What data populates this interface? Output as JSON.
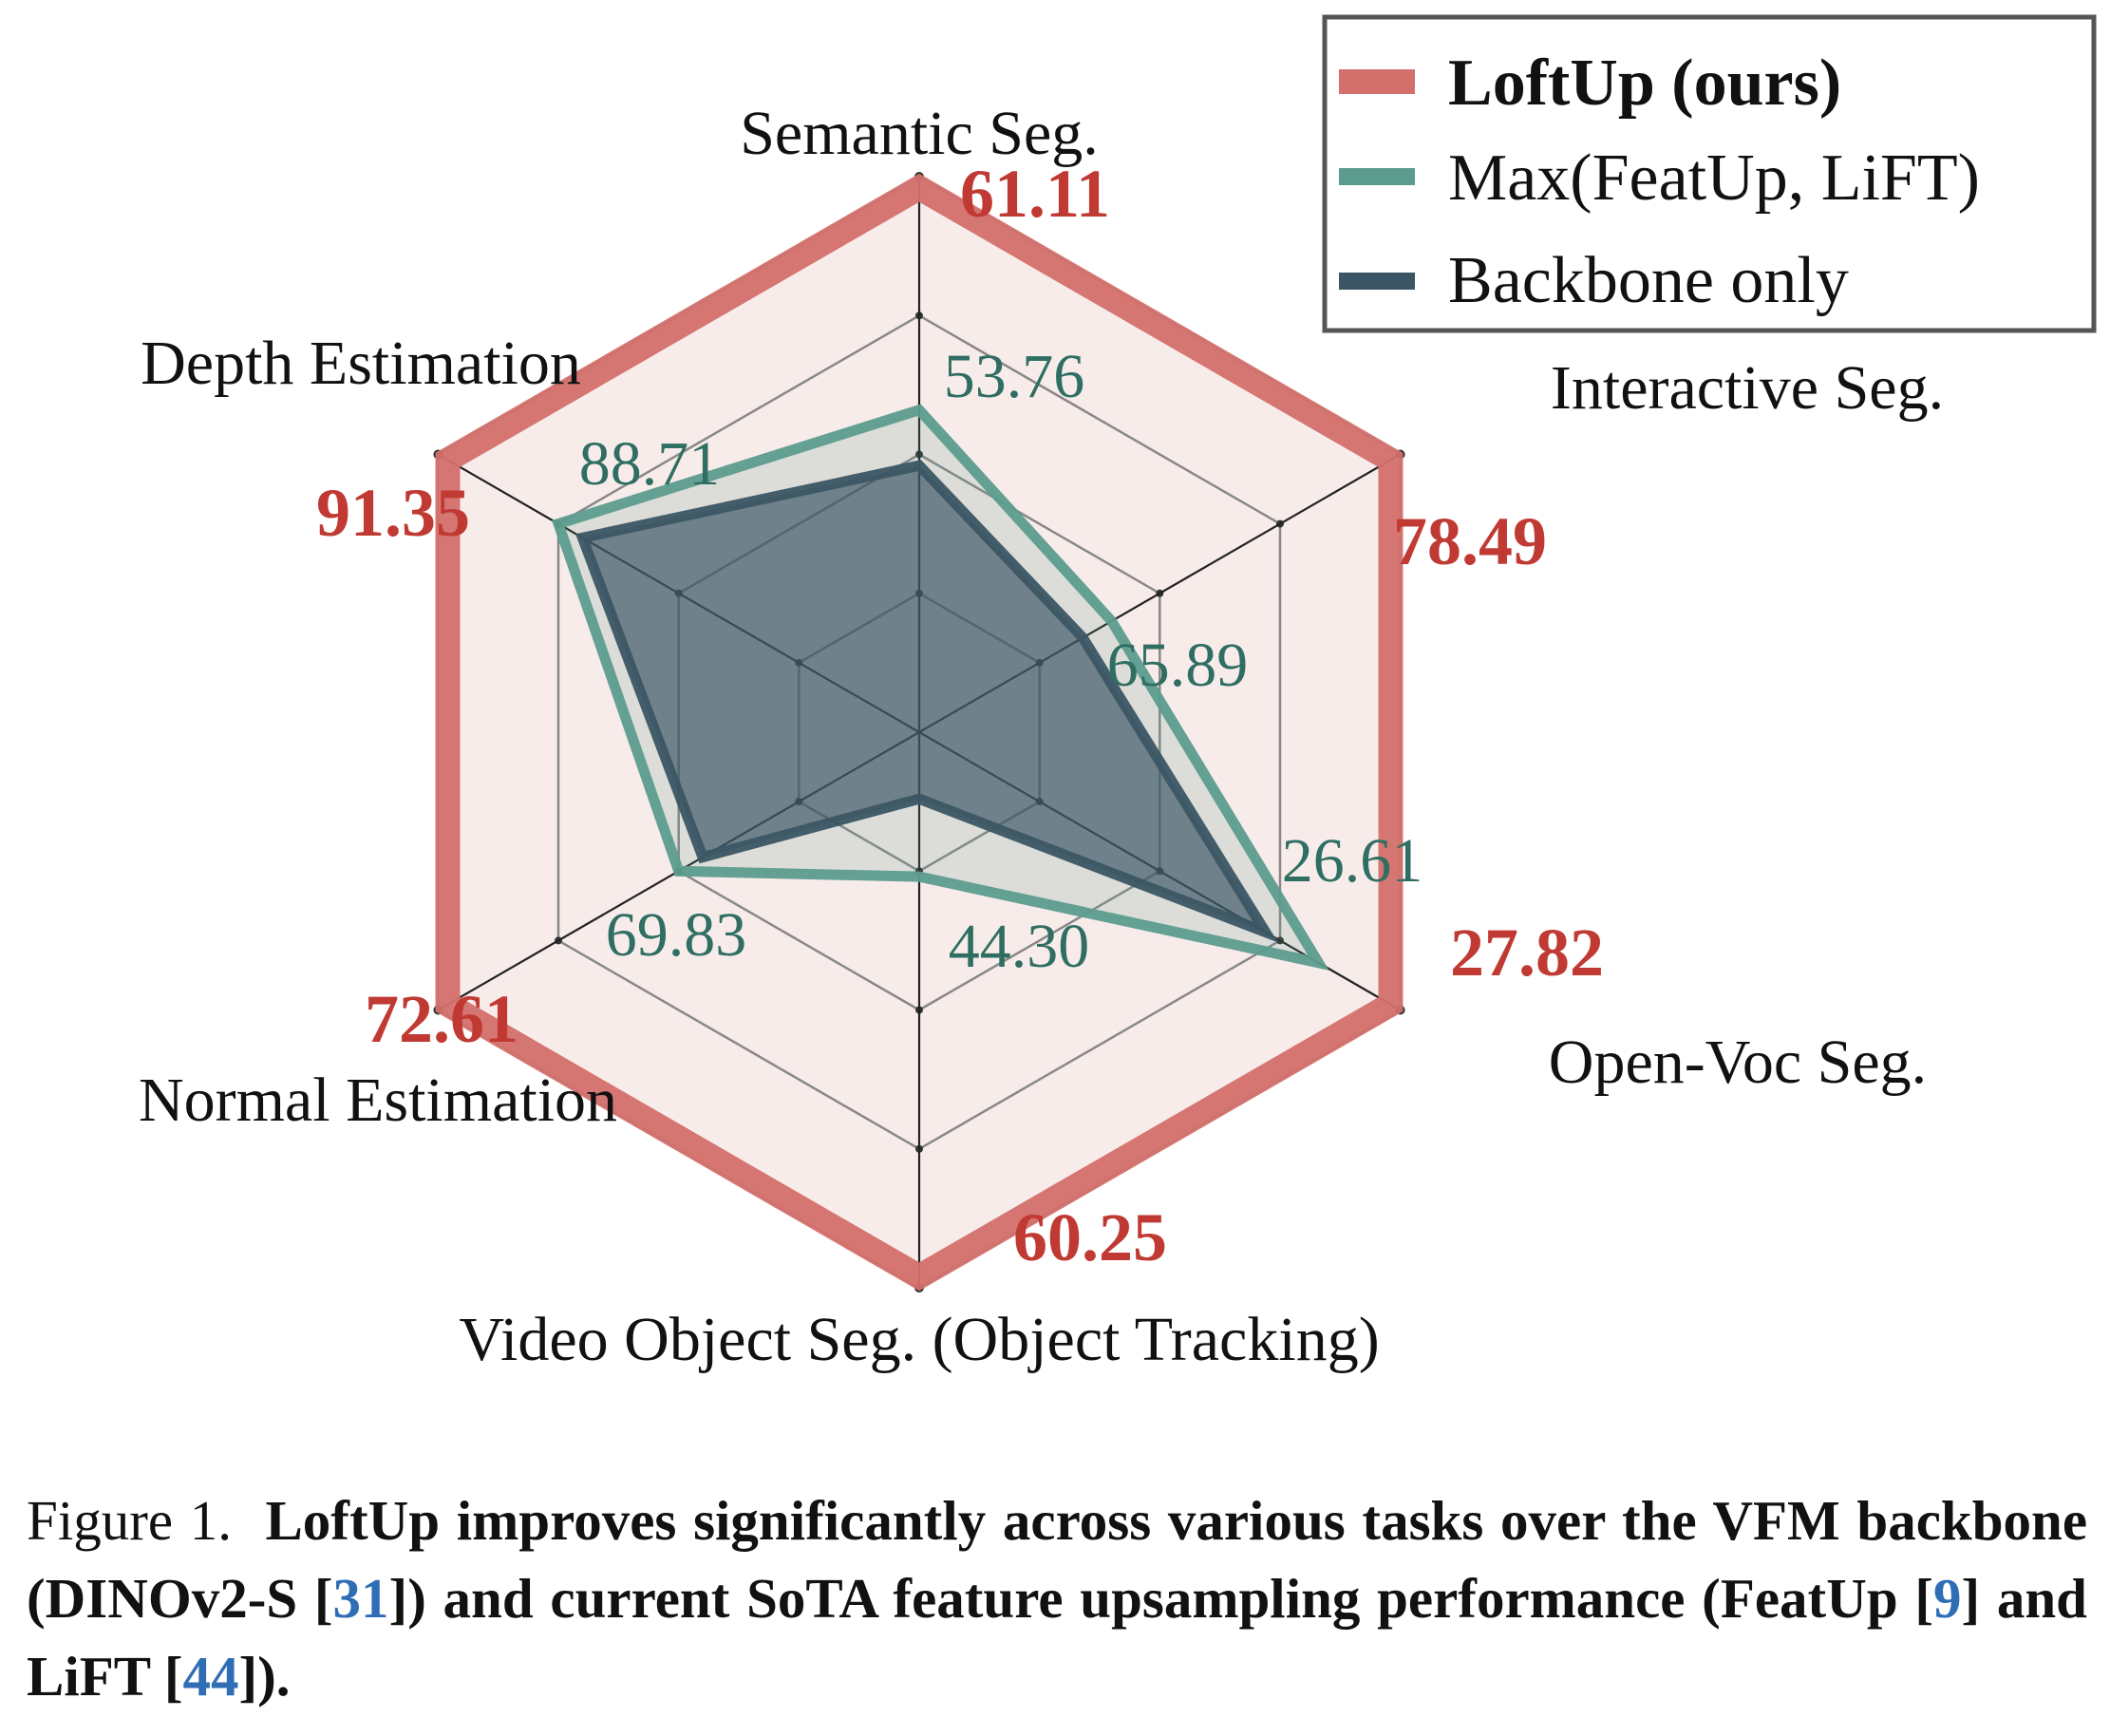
{
  "colors": {
    "loftup": "#d3706c",
    "max": "#5c9c8e",
    "backbone": "#3b5564",
    "loftup_value_text": "#c03a33",
    "max_value_text": "#2f6e62",
    "grid": "#888888",
    "spoke": "#222222",
    "outer_fill": "#f8ecea",
    "legend_border": "#555555",
    "ref": "#2f6db5"
  },
  "chart_data": {
    "type": "radar",
    "axes": [
      "Semantic Seg.",
      "Interactive Seg.",
      "Open-Voc Seg.",
      "Video Object Seg. (Object Tracking)",
      "Normal Estimation",
      "Depth Estimation"
    ],
    "series": [
      {
        "name": "LoftUp (ours)",
        "values": [
          61.11,
          78.49,
          27.82,
          60.25,
          72.61,
          91.35
        ],
        "normalized": [
          0.98,
          0.98,
          0.98,
          0.98,
          0.98,
          0.98
        ],
        "labels": [
          "61.11",
          "78.49",
          "27.82",
          "60.25",
          "72.61",
          "91.35"
        ]
      },
      {
        "name": "Max(FeatUp, LiFT)",
        "values": [
          53.76,
          65.89,
          26.61,
          44.3,
          69.83,
          88.71
        ],
        "normalized": [
          0.58,
          0.4,
          0.83,
          0.26,
          0.5,
          0.75
        ],
        "labels": [
          "53.76",
          "65.89",
          "26.61",
          "44.30",
          "69.83",
          "88.71"
        ]
      },
      {
        "name": "Backbone only",
        "values": [
          null,
          null,
          null,
          null,
          null,
          null
        ],
        "normalized": [
          0.48,
          0.34,
          0.72,
          0.12,
          0.45,
          0.7
        ]
      }
    ],
    "grid_levels": [
      0.25,
      0.5,
      0.75,
      1.0
    ],
    "legend_position": "top-right"
  },
  "legend": {
    "items": [
      "LoftUp (ours)",
      "Max(FeatUp, LiFT)",
      "Backbone only"
    ]
  },
  "caption": {
    "prefix": "Figure 1.",
    "part1": "LoftUp improves significantly across various tasks over the VFM backbone (DINOv2-S [",
    "ref1": "31",
    "part2": "]) and current SoTA feature upsampling performance (FeatUp [",
    "ref2": "9",
    "part3": "] and LiFT [",
    "ref3": "44",
    "part4": "])."
  }
}
